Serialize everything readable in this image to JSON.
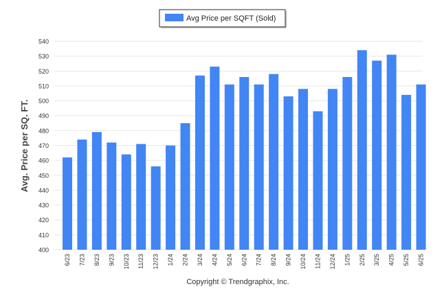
{
  "chart_data": {
    "type": "bar",
    "legend": {
      "label": "Avg Price per SQFT (Sold)",
      "position": "top-center"
    },
    "ylabel": "Avg. Price per SQ. FT.",
    "xlabel": "",
    "ylim": [
      400,
      540
    ],
    "yticks": [
      400,
      410,
      420,
      430,
      440,
      450,
      460,
      470,
      480,
      490,
      500,
      510,
      520,
      530,
      540
    ],
    "grid": true,
    "categories": [
      "6/23",
      "7/23",
      "8/23",
      "9/23",
      "10/23",
      "11/23",
      "12/23",
      "1/24",
      "2/24",
      "3/24",
      "4/24",
      "5/24",
      "6/24",
      "7/24",
      "8/24",
      "9/24",
      "10/24",
      "11/24",
      "12/24",
      "1/25",
      "2/25",
      "3/25",
      "4/25",
      "5/25",
      "6/25"
    ],
    "series": [
      {
        "name": "Avg Price per SQFT (Sold)",
        "color": "#4285f4",
        "values": [
          462,
          474,
          479,
          472,
          464,
          471,
          456,
          470,
          485,
          517,
          523,
          511,
          516,
          511,
          518,
          503,
          508,
          493,
          508,
          516,
          534,
          527,
          531,
          504,
          511
        ]
      }
    ]
  },
  "footer": {
    "copyright": "Copyright © Trendgraphix, Inc."
  }
}
